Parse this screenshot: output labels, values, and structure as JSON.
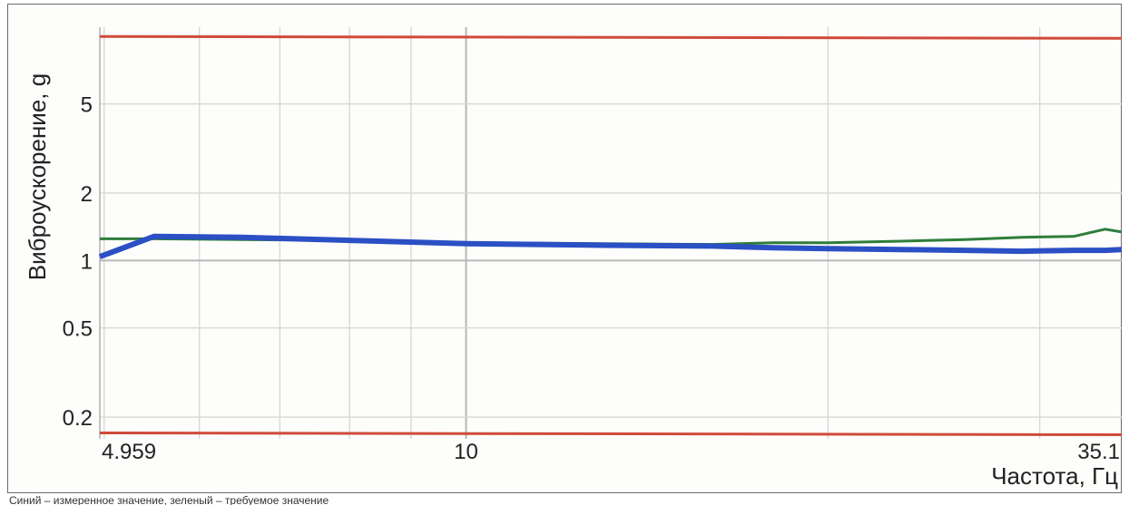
{
  "chart_data": {
    "type": "line",
    "title": "",
    "xlabel": "Частота, Гц",
    "ylabel": "Виброускорение, g",
    "x_scale": "log",
    "y_scale": "log",
    "xlim": [
      4.959,
      35.1
    ],
    "ylim": [
      0.16,
      11
    ],
    "x_tick_labels": [
      "4.959",
      "10",
      "35.1"
    ],
    "y_tick_labels": [
      "0.2",
      "0.5",
      "1",
      "2",
      "5"
    ],
    "grid": true,
    "legend": "none",
    "reference_lines": [
      {
        "y": 10,
        "color": "#d04a3a"
      },
      {
        "y": 0.17,
        "color": "#d04a3a"
      }
    ],
    "series": [
      {
        "color": "#2f7d3a",
        "x": [
          4.959,
          5.5,
          6.5,
          8.0,
          10.0,
          13.0,
          16.0,
          18.0,
          20.0,
          23.0,
          26.0,
          29.0,
          32.0,
          34.0,
          35.1
        ],
        "y": [
          1.25,
          1.25,
          1.24,
          1.23,
          1.2,
          1.19,
          1.18,
          1.2,
          1.2,
          1.22,
          1.24,
          1.27,
          1.28,
          1.38,
          1.34
        ]
      },
      {
        "color": "#2b4fc4",
        "x": [
          4.959,
          5.5,
          6.5,
          8.0,
          10.0,
          13.0,
          16.0,
          18.0,
          20.0,
          23.0,
          26.0,
          29.0,
          32.0,
          34.0,
          35.1
        ],
        "y": [
          1.04,
          1.28,
          1.27,
          1.23,
          1.19,
          1.17,
          1.16,
          1.14,
          1.13,
          1.12,
          1.11,
          1.1,
          1.11,
          1.11,
          1.12
        ]
      }
    ]
  },
  "caption": "Синий – измеренное значение, зеленый – требуемое значение"
}
